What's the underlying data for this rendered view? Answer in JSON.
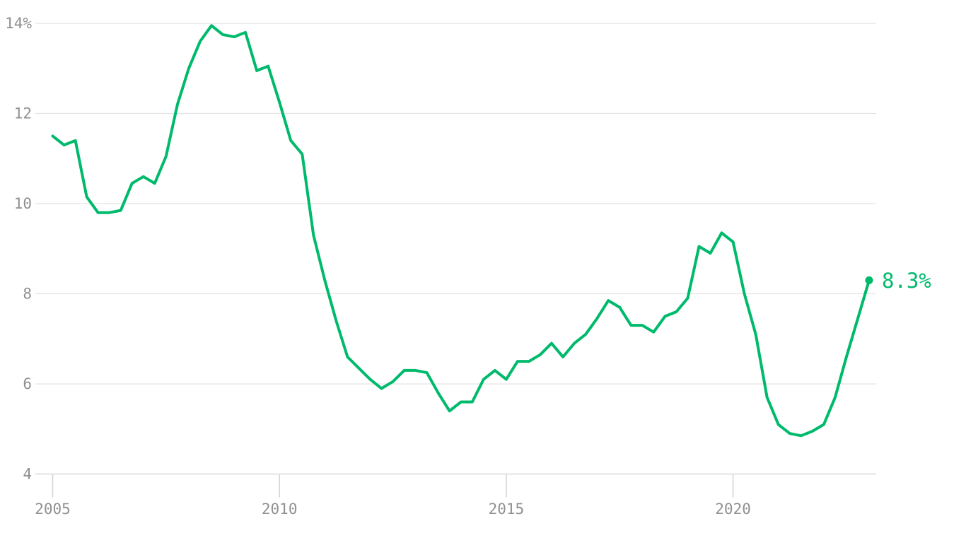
{
  "chart_data": {
    "type": "line",
    "title": "",
    "xlabel": "",
    "ylabel": "",
    "unit": "%",
    "grid": "on",
    "legend_position": "none",
    "x_domain": [
      2005,
      2023
    ],
    "y_domain": [
      4,
      14
    ],
    "x": [
      2005,
      2005.25,
      2005.5,
      2005.75,
      2006,
      2006.25,
      2006.5,
      2006.75,
      2007,
      2007.25,
      2007.5,
      2007.75,
      2008,
      2008.25,
      2008.5,
      2008.75,
      2009,
      2009.25,
      2009.5,
      2009.75,
      2010,
      2010.25,
      2010.5,
      2010.75,
      2011,
      2011.25,
      2011.5,
      2011.75,
      2012,
      2012.25,
      2012.5,
      2012.75,
      2013,
      2013.25,
      2013.5,
      2013.75,
      2014,
      2014.25,
      2014.5,
      2014.75,
      2015,
      2015.25,
      2015.5,
      2015.75,
      2016,
      2016.25,
      2016.5,
      2016.75,
      2017,
      2017.25,
      2017.5,
      2017.75,
      2018,
      2018.25,
      2018.5,
      2018.75,
      2019,
      2019.25,
      2019.5,
      2019.75,
      2020,
      2020.25,
      2020.5,
      2020.75,
      2021,
      2021.25,
      2021.5,
      2021.75,
      2022,
      2022.25,
      2022.5,
      2022.75,
      2023
    ],
    "values": [
      11.5,
      11.3,
      11.4,
      10.15,
      9.8,
      9.8,
      9.85,
      10.45,
      10.6,
      10.45,
      11.05,
      12.2,
      13.0,
      13.6,
      13.95,
      13.75,
      13.7,
      13.8,
      12.95,
      13.05,
      12.25,
      11.4,
      11.1,
      9.3,
      8.3,
      7.4,
      6.6,
      6.35,
      6.1,
      5.9,
      6.05,
      6.3,
      6.3,
      6.25,
      5.8,
      5.4,
      5.6,
      5.6,
      6.1,
      6.3,
      6.1,
      6.5,
      6.5,
      6.65,
      6.9,
      6.6,
      6.9,
      7.1,
      7.45,
      7.85,
      7.7,
      7.3,
      7.3,
      7.15,
      7.5,
      7.6,
      7.9,
      9.05,
      8.9,
      9.35,
      9.15,
      8.0,
      7.1,
      5.7,
      5.1,
      4.9,
      4.85,
      4.95,
      5.1,
      5.7,
      6.6,
      7.45,
      8.3
    ],
    "y_ticks": [
      {
        "value": 4,
        "label": "4"
      },
      {
        "value": 6,
        "label": "6"
      },
      {
        "value": 8,
        "label": "8"
      },
      {
        "value": 10,
        "label": "10"
      },
      {
        "value": 12,
        "label": "12"
      },
      {
        "value": 14,
        "label": "14%"
      }
    ],
    "x_ticks": [
      {
        "value": 2005,
        "label": "2005"
      },
      {
        "value": 2010,
        "label": "2010"
      },
      {
        "value": 2015,
        "label": "2015"
      },
      {
        "value": 2020,
        "label": "2020"
      }
    ],
    "end_label": "8.3%",
    "end_value": 8.3,
    "colors": {
      "line": "#00ba6c",
      "grid": "#e3e3e3",
      "tick": "#d2d2d2",
      "axis_text": "#8f9092",
      "background": "#ffffff"
    }
  }
}
